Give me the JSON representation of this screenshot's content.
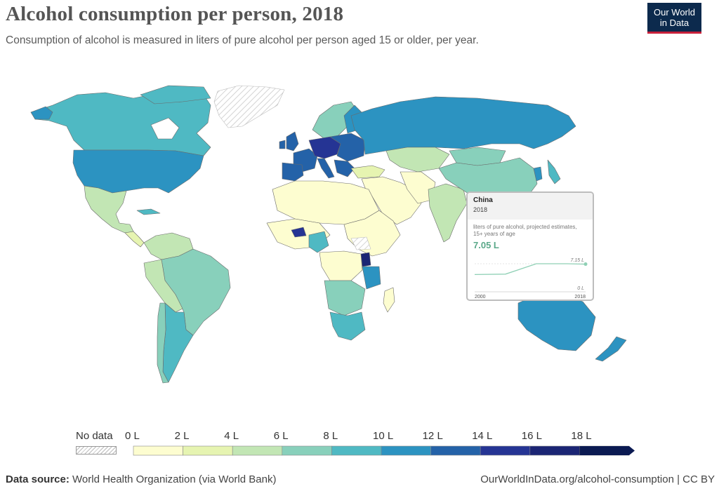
{
  "header": {
    "title": "Alcohol consumption per person, 2018",
    "subtitle": "Consumption of alcohol is measured in liters of pure alcohol per person aged 15 or older, per year."
  },
  "logo": {
    "line1": "Our World",
    "line2": "in Data"
  },
  "legend": {
    "nodata_label": "No data",
    "bins": [
      {
        "label": "0 L",
        "color": "#fdfdd0"
      },
      {
        "label": "2 L",
        "color": "#e6f4b1"
      },
      {
        "label": "4 L",
        "color": "#c2e6b4"
      },
      {
        "label": "6 L",
        "color": "#88d0bb"
      },
      {
        "label": "8 L",
        "color": "#4fb9c3"
      },
      {
        "label": "10 L",
        "color": "#2c93c1"
      },
      {
        "label": "12 L",
        "color": "#2462a8"
      },
      {
        "label": "14 L",
        "color": "#253494"
      },
      {
        "label": "16 L",
        "color": "#1b2574"
      },
      {
        "label": "18 L",
        "color": "#0b1a52"
      }
    ]
  },
  "tooltip": {
    "country": "China",
    "year": "2018",
    "description": "liters of pure alcohol, projected estimates, 15+ years of age",
    "value": "7.05 L",
    "sparkline_max_label": "7.15 L",
    "sparkline_min_label": "0 L",
    "x_start": "2000",
    "x_end": "2018",
    "series": [
      {
        "year": 2000,
        "value": 4.4
      },
      {
        "year": 2005,
        "value": 4.5
      },
      {
        "year": 2010,
        "value": 7.15
      },
      {
        "year": 2015,
        "value": 7.15
      },
      {
        "year": 2018,
        "value": 7.05
      }
    ],
    "accent_color": "#5aa889"
  },
  "footer": {
    "source_label": "Data source:",
    "source_text": "World Health Organization (via World Bank)",
    "url": "OurWorldInData.org/alcohol-consumption | CC BY"
  }
}
